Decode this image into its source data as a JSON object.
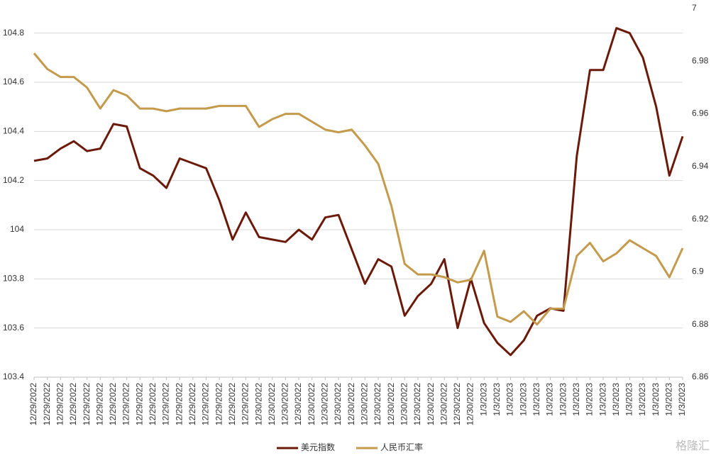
{
  "chart_data": {
    "type": "line",
    "categories": [
      "12/29/2022",
      "12/29/2022",
      "12/29/2022",
      "12/29/2022",
      "12/29/2022",
      "12/29/2022",
      "12/29/2022",
      "12/29/2022",
      "12/29/2022",
      "12/29/2022",
      "12/29/2022",
      "12/29/2022",
      "12/29/2022",
      "12/29/2022",
      "12/29/2022",
      "12/29/2022",
      "12/29/2022",
      "12/30/2022",
      "12/30/2022",
      "12/30/2022",
      "12/30/2022",
      "12/30/2022",
      "12/30/2022",
      "12/30/2022",
      "12/30/2022",
      "12/30/2022",
      "12/30/2022",
      "12/30/2022",
      "12/30/2022",
      "12/30/2022",
      "12/30/2022",
      "12/30/2022",
      "12/30/2022",
      "12/30/2022",
      "1/3/2023",
      "1/3/2023",
      "1/3/2023",
      "1/3/2023",
      "1/3/2023",
      "1/3/2023",
      "1/3/2023",
      "1/3/2023",
      "1/3/2023",
      "1/3/2023",
      "1/3/2023",
      "1/3/2023",
      "1/3/2023",
      "1/3/2023",
      "1/3/2023",
      "1/3/2023"
    ],
    "series": [
      {
        "name": "美元指数",
        "color": "#6b1a0a",
        "values": [
          104.28,
          104.29,
          104.33,
          104.36,
          104.32,
          104.33,
          104.43,
          104.42,
          104.25,
          104.22,
          104.17,
          104.29,
          104.27,
          104.25,
          104.12,
          103.96,
          104.07,
          103.97,
          103.96,
          103.95,
          104.0,
          103.96,
          104.05,
          104.06,
          103.92,
          103.78,
          103.88,
          103.85,
          103.65,
          103.73,
          103.78,
          103.88,
          103.6,
          103.8,
          103.62,
          103.54,
          103.49,
          103.55,
          103.65,
          103.68,
          103.67,
          104.3,
          104.65,
          104.65,
          104.82,
          104.8,
          104.7,
          104.5,
          104.22,
          104.38
        ]
      },
      {
        "name": "人民币汇率",
        "color": "#c49a4c",
        "axis": "y2",
        "values": [
          6.983,
          6.977,
          6.974,
          6.974,
          6.97,
          6.962,
          6.969,
          6.967,
          6.962,
          6.962,
          6.961,
          6.962,
          6.962,
          6.962,
          6.963,
          6.963,
          6.963,
          6.955,
          6.958,
          6.96,
          6.96,
          6.957,
          6.954,
          6.953,
          6.954,
          6.948,
          6.941,
          6.925,
          6.903,
          6.899,
          6.899,
          6.898,
          6.896,
          6.897,
          6.908,
          6.883,
          6.881,
          6.885,
          6.88,
          6.886,
          6.886,
          6.906,
          6.911,
          6.904,
          6.907,
          6.912,
          6.909,
          6.906,
          6.898,
          6.909
        ]
      }
    ],
    "ylim": [
      103.4,
      104.9
    ],
    "yticks": [
      103.4,
      103.6,
      103.8,
      104,
      104.2,
      104.4,
      104.6,
      104.8
    ],
    "y2lim": [
      6.86,
      7
    ],
    "y2ticks": [
      6.86,
      6.88,
      6.9,
      6.92,
      6.94,
      6.96,
      6.98,
      7
    ],
    "grid": true,
    "legend": "bottom",
    "watermark": "格隆汇"
  }
}
